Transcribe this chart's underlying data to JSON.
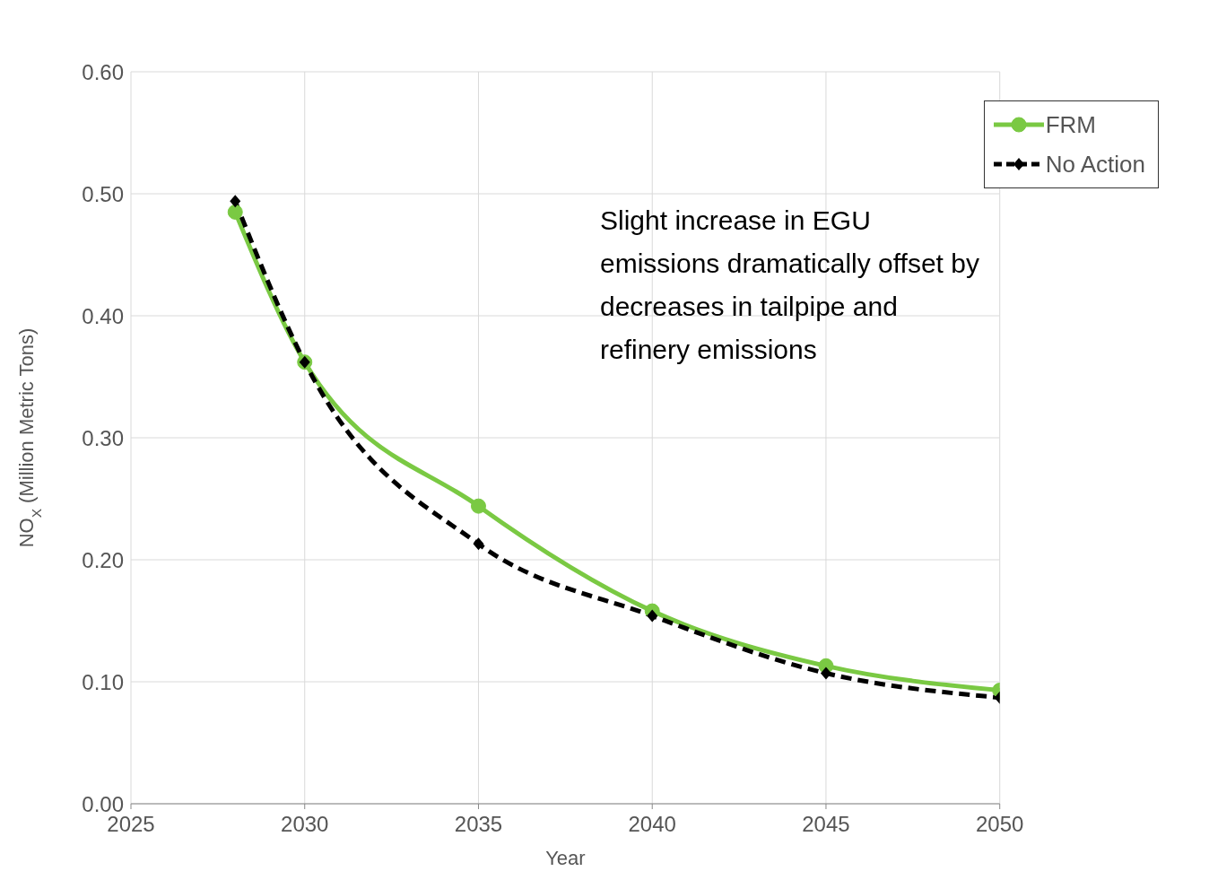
{
  "chart_data": {
    "type": "line",
    "xlabel": "Year",
    "ylabel": "NO$_{X}$ (Million Metric Tons)",
    "x": [
      2028,
      2030,
      2035,
      2040,
      2045,
      2050
    ],
    "series": [
      {
        "name": "FRM",
        "color": "#7ac943",
        "values": [
          0.485,
          0.362,
          0.244,
          0.158,
          0.113,
          0.093
        ],
        "marker": "circle",
        "line_style": "solid"
      },
      {
        "name": "No Action",
        "color": "#000000",
        "values": [
          0.494,
          0.362,
          0.213,
          0.154,
          0.107,
          0.087
        ],
        "marker": "diamond",
        "line_style": "dashed"
      }
    ],
    "xlim": [
      2025,
      2050
    ],
    "xticks": [
      2025,
      2030,
      2035,
      2040,
      2045,
      2050
    ],
    "ylim": [
      0,
      0.6
    ],
    "yticks": [
      {
        "value": 0,
        "label": "0.00"
      },
      {
        "value": 0.1,
        "label": "0.10"
      },
      {
        "value": 0.2,
        "label": "0.20"
      },
      {
        "value": 0.3,
        "label": "0.30"
      },
      {
        "value": 0.4,
        "label": "0.40"
      },
      {
        "value": 0.5,
        "label": "0.50"
      },
      {
        "value": 0.6,
        "label": "0.60"
      }
    ],
    "grid": true,
    "legend": "top right",
    "annotations": [
      "Slight increase in EGU emissions dramatically offset by decreases in tailpipe and refinery emissions"
    ]
  }
}
